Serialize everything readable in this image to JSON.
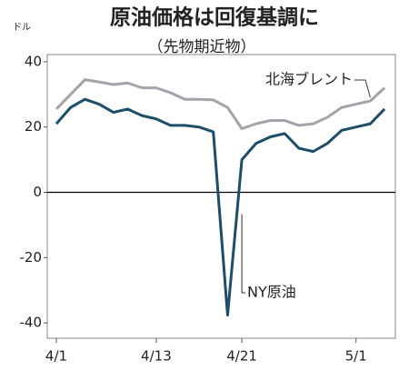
{
  "chart_data": {
    "type": "line",
    "title": "原油価格は回復基調に",
    "subtitle": "（先物期近物）",
    "y_unit": "ドル",
    "categories": [
      "4/1",
      null,
      null,
      null,
      null,
      null,
      null,
      "4/13",
      null,
      null,
      null,
      null,
      null,
      "4/21",
      null,
      null,
      null,
      null,
      null,
      null,
      null,
      "5/1",
      null,
      null
    ],
    "series": [
      {
        "name": "北海ブレント",
        "color": "#a3a3ab",
        "values": [
          25.5,
          30,
          34.5,
          33.8,
          33,
          33.5,
          32,
          32,
          30.5,
          28.5,
          28.5,
          28.3,
          26,
          19.5,
          21,
          22,
          22,
          20.5,
          21,
          23,
          26,
          27,
          28,
          32
        ]
      },
      {
        "name": "NY原油",
        "color": "#1d4d68",
        "values": [
          21,
          26,
          28.5,
          27,
          24.5,
          25.5,
          23.5,
          22.5,
          20.5,
          20.5,
          20,
          18.5,
          -37.6,
          10,
          15,
          17,
          18,
          13.5,
          12.5,
          15,
          19,
          20,
          21,
          25.5
        ]
      }
    ],
    "ylim": [
      -44.7,
      42.2
    ],
    "yticks": [
      40,
      20,
      0,
      -20,
      -40
    ]
  }
}
